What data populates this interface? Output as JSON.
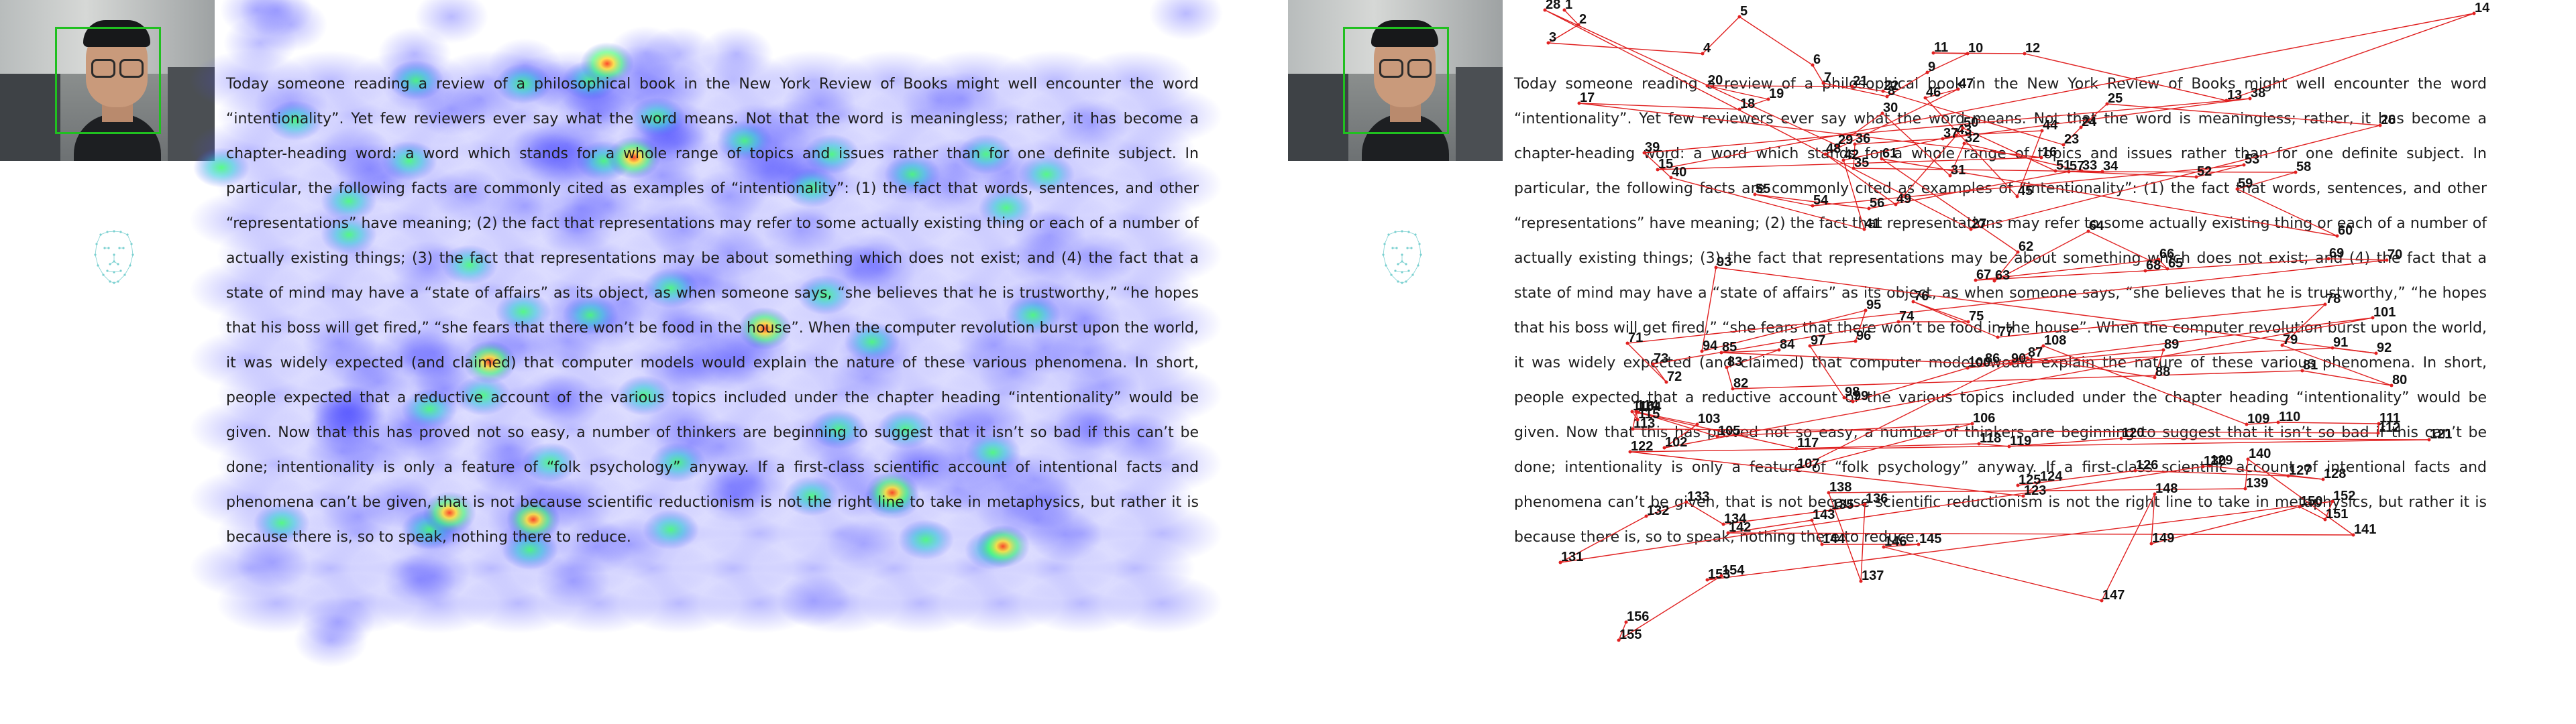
{
  "reading_passage": "Today someone reading a review of a philosophical book in the New York Review of Books might well encounter the word “intentionality”. Yet few reviewers ever say what the word means. Not that the word is meaningless; rather, it has become a chapter-heading word: a word which stands for a whole range of topics and issues rather than for one definite subject. In particular, the following facts are commonly cited as examples of “intentionality”: (1) the fact that words, sentences, and other “representations” have meaning; (2) the fact that representations may refer to some actually existing thing or each of a number of actually existing things; (3) the fact that representations may be about something which does not exist; and (4) the fact that a state of mind may have a “state of affairs” as its object, as when someone says, “she believes that he is trustworthy,” “he hopes that his boss will get fired,” “she fears that there won’t be food in the house”. When the computer revolution burst upon the world, it was widely expected (and claimed) that computer models would explain the nature of these various phenomena. In short, people expected that a reductive account of the various topics included under the chapter heading “intentionality” would be given. Now that this has proved not so easy, a number of thinkers are beginning to suggest that it isn’t so bad if this can’t be done; intentionality is only a feature of “folk psychology” anyway. If a first-class scientific account of intentional facts and phenomena can’t be given, that is not because scientific reductionism is not the right line to take in metaphysics, but rather it is because there is, so to speak, nothing there to reduce.",
  "colors": {
    "heatmap_low": "#3c3cff",
    "heatmap_mid": "#3cff64",
    "heatmap_high": "#ffe040",
    "heatmap_peak": "#ff5020",
    "fixation": "#e02020",
    "face_box": "#20c020",
    "face_mesh": "#7ad0d0"
  },
  "icons": {
    "webcam": "webcam-feed-icon",
    "face_mesh": "face-landmark-mesh-icon"
  },
  "heatmap_intensity_scale": [
    0,
    1
  ],
  "fixation_labels": [
    "1",
    "2",
    "3",
    "4",
    "5",
    "6",
    "7",
    "8",
    "9",
    "10",
    "11",
    "12",
    "13",
    "14",
    "15",
    "16",
    "17",
    "18",
    "19",
    "20",
    "21",
    "22",
    "23",
    "24",
    "25",
    "26",
    "27",
    "28",
    "29",
    "30",
    "31",
    "32",
    "33",
    "34",
    "35",
    "36",
    "37",
    "38",
    "39",
    "40",
    "41",
    "42",
    "43",
    "44",
    "45",
    "46",
    "47",
    "48",
    "49",
    "50",
    "51",
    "52",
    "53",
    "54",
    "55",
    "56",
    "57",
    "58",
    "59",
    "60",
    "61",
    "62",
    "63",
    "64",
    "65",
    "66",
    "67",
    "68",
    "69",
    "70",
    "71",
    "72",
    "73",
    "74",
    "75",
    "76",
    "77",
    "78",
    "79",
    "80",
    "81",
    "82",
    "83",
    "84",
    "85",
    "86",
    "87",
    "88",
    "89",
    "90",
    "91",
    "92",
    "93",
    "94",
    "95",
    "96",
    "97",
    "98",
    "99",
    "100",
    "101",
    "102",
    "103",
    "104",
    "105",
    "106",
    "107",
    "108",
    "109",
    "110",
    "111",
    "112",
    "113",
    "114",
    "115",
    "116",
    "117",
    "118",
    "119",
    "120",
    "121",
    "122",
    "123",
    "124",
    "125",
    "126",
    "127",
    "128",
    "129",
    "130",
    "131",
    "132",
    "133",
    "134",
    "135",
    "136",
    "137",
    "138",
    "139",
    "140",
    "141",
    "142",
    "143",
    "144",
    "145",
    "146",
    "147",
    "148",
    "149",
    "150",
    "151",
    "152",
    "153",
    "154",
    "155",
    "156",
    "157"
  ]
}
